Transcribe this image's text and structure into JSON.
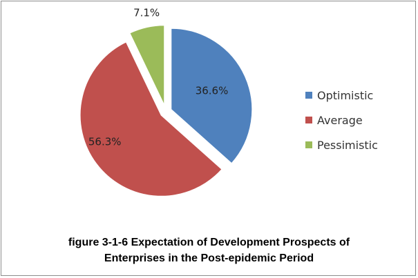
{
  "chart_data": {
    "type": "pie",
    "categories": [
      "Optimistic",
      "Average",
      "Pessimistic"
    ],
    "values": [
      36.6,
      56.3,
      7.1
    ],
    "data_labels": [
      "36.6%",
      "56.3%",
      "7.1%"
    ],
    "colors": [
      "#4f81bd",
      "#c0504d",
      "#9bbb59"
    ],
    "exploded": true,
    "legend": "right",
    "title": ""
  },
  "caption": {
    "line1": "figure 3-1-6 Expectation of Development Prospects of",
    "line2": "Enterprises in the Post-epidemic Period"
  }
}
